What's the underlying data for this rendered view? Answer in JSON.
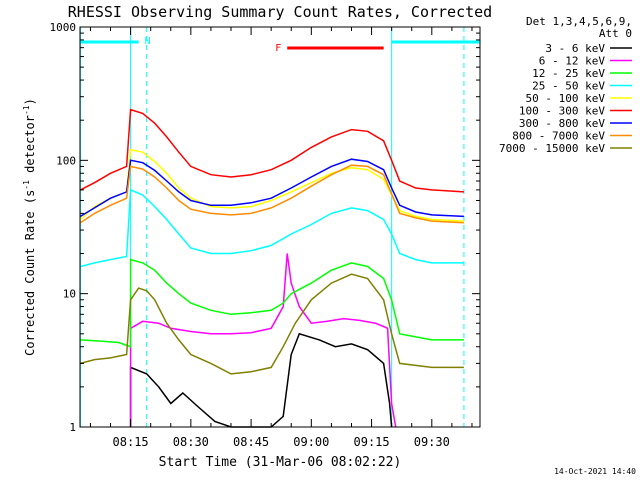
{
  "chart_data": {
    "type": "line",
    "title": "RHESSI Observing Summary Count Rates, Corrected",
    "ylabel_main": "Corrected Count Rate (s",
    "ylabel_sup1": "-1",
    "ylabel_mid": " detector",
    "ylabel_sup2": "-1",
    "ylabel_end": ")",
    "xlabel": "Start Time (31-Mar-06 08:02:22)",
    "timestamp": "14-Oct-2021 14:40",
    "y_scale": "log",
    "ylim": [
      1,
      1000
    ],
    "xlim_minutes_after_0800": [
      2.4,
      102
    ],
    "x_ticks": [
      {
        "label": "08:15",
        "minutes": 15
      },
      {
        "label": "08:30",
        "minutes": 30
      },
      {
        "label": "08:45",
        "minutes": 45
      },
      {
        "label": "09:00",
        "minutes": 60
      },
      {
        "label": "09:15",
        "minutes": 75
      },
      {
        "label": "09:30",
        "minutes": 90
      }
    ],
    "y_ticks": [
      {
        "label": "1",
        "value": 1
      },
      {
        "label": "10",
        "value": 10
      },
      {
        "label": "100",
        "value": 100
      },
      {
        "label": "1000",
        "value": 1000
      }
    ],
    "legend_header": [
      "Det 1,3,4,5,6,9,",
      "Att 0"
    ],
    "legend_position": "right",
    "markers": {
      "night_label": "N",
      "flare_label": "F",
      "night_bars": [
        [
          2.5,
          17
        ],
        [
          80,
          102
        ]
      ],
      "flare_bar": [
        54,
        78
      ],
      "dashed_lines": [
        19,
        98
      ],
      "solid_lines": [
        2.5,
        15,
        80
      ]
    },
    "series": [
      {
        "name": "3 - 6 keV",
        "color": "#000000",
        "points": [
          [
            15,
            1
          ],
          [
            15,
            2.8
          ],
          [
            19,
            2.5
          ],
          [
            22,
            2.0
          ],
          [
            25,
            1.5
          ],
          [
            28,
            1.8
          ],
          [
            32,
            1.4
          ],
          [
            36,
            1.1
          ],
          [
            40,
            1
          ],
          [
            50,
            1
          ],
          [
            53,
            1.2
          ],
          [
            55,
            3.5
          ],
          [
            57,
            5
          ],
          [
            62,
            4.5
          ],
          [
            66,
            4.0
          ],
          [
            70,
            4.2
          ],
          [
            74,
            3.8
          ],
          [
            78,
            3.0
          ],
          [
            79.5,
            1.5
          ],
          [
            80,
            1
          ]
        ]
      },
      {
        "name": "6 - 12 keV",
        "color": "#ff00ff",
        "points": [
          [
            15,
            1
          ],
          [
            15,
            5.5
          ],
          [
            18,
            6.2
          ],
          [
            22,
            6.0
          ],
          [
            25,
            5.5
          ],
          [
            30,
            5.2
          ],
          [
            35,
            5.0
          ],
          [
            40,
            5.0
          ],
          [
            45,
            5.1
          ],
          [
            50,
            5.5
          ],
          [
            53,
            8
          ],
          [
            54,
            20
          ],
          [
            55,
            12
          ],
          [
            57,
            8
          ],
          [
            60,
            6
          ],
          [
            64,
            6.2
          ],
          [
            68,
            6.5
          ],
          [
            72,
            6.3
          ],
          [
            76,
            6.0
          ],
          [
            79,
            5.5
          ],
          [
            80,
            1.5
          ],
          [
            81,
            1
          ]
        ]
      },
      {
        "name": "12 - 25 keV",
        "color": "#00ff00",
        "points": [
          [
            2.5,
            4.5
          ],
          [
            8,
            4.4
          ],
          [
            12,
            4.3
          ],
          [
            15,
            4.0
          ],
          [
            15,
            18
          ],
          [
            18,
            17
          ],
          [
            21,
            15
          ],
          [
            24,
            12
          ],
          [
            27,
            10
          ],
          [
            30,
            8.5
          ],
          [
            35,
            7.5
          ],
          [
            40,
            7.0
          ],
          [
            45,
            7.2
          ],
          [
            50,
            7.5
          ],
          [
            53,
            8.5
          ],
          [
            55,
            10
          ],
          [
            60,
            12
          ],
          [
            65,
            15
          ],
          [
            70,
            17
          ],
          [
            74,
            16
          ],
          [
            78,
            13
          ],
          [
            80,
            9
          ],
          [
            82,
            5
          ],
          [
            90,
            4.5
          ],
          [
            98,
            4.5
          ]
        ]
      },
      {
        "name": "25 - 50 keV",
        "color": "#00ffff",
        "points": [
          [
            2.5,
            16
          ],
          [
            6,
            17
          ],
          [
            10,
            18
          ],
          [
            14,
            19
          ],
          [
            15,
            60
          ],
          [
            18,
            55
          ],
          [
            21,
            45
          ],
          [
            24,
            36
          ],
          [
            27,
            28
          ],
          [
            30,
            22
          ],
          [
            35,
            20
          ],
          [
            40,
            20
          ],
          [
            45,
            21
          ],
          [
            50,
            23
          ],
          [
            55,
            28
          ],
          [
            60,
            33
          ],
          [
            65,
            40
          ],
          [
            70,
            44
          ],
          [
            74,
            42
          ],
          [
            78,
            36
          ],
          [
            80,
            28
          ],
          [
            82,
            20
          ],
          [
            86,
            18
          ],
          [
            90,
            17
          ],
          [
            98,
            17
          ]
        ]
      },
      {
        "name": "50 - 100 keV",
        "color": "#ffff00",
        "points": [
          [
            2.5,
            36
          ],
          [
            6,
            45
          ],
          [
            10,
            52
          ],
          [
            14,
            58
          ],
          [
            15,
            120
          ],
          [
            18,
            115
          ],
          [
            21,
            98
          ],
          [
            24,
            80
          ],
          [
            27,
            62
          ],
          [
            30,
            52
          ],
          [
            35,
            45
          ],
          [
            40,
            44
          ],
          [
            45,
            45
          ],
          [
            50,
            50
          ],
          [
            55,
            58
          ],
          [
            60,
            68
          ],
          [
            65,
            80
          ],
          [
            70,
            88
          ],
          [
            74,
            85
          ],
          [
            78,
            72
          ],
          [
            80,
            55
          ],
          [
            82,
            42
          ],
          [
            86,
            38
          ],
          [
            90,
            36
          ],
          [
            98,
            35
          ]
        ]
      },
      {
        "name": "100 - 300 keV",
        "color": "#ff0000",
        "points": [
          [
            2.5,
            60
          ],
          [
            6,
            68
          ],
          [
            10,
            80
          ],
          [
            14,
            90
          ],
          [
            15,
            240
          ],
          [
            18,
            225
          ],
          [
            21,
            190
          ],
          [
            24,
            150
          ],
          [
            27,
            115
          ],
          [
            30,
            90
          ],
          [
            35,
            78
          ],
          [
            40,
            75
          ],
          [
            45,
            78
          ],
          [
            50,
            85
          ],
          [
            55,
            100
          ],
          [
            60,
            125
          ],
          [
            65,
            150
          ],
          [
            70,
            170
          ],
          [
            74,
            165
          ],
          [
            78,
            140
          ],
          [
            80,
            100
          ],
          [
            82,
            70
          ],
          [
            86,
            62
          ],
          [
            90,
            60
          ],
          [
            98,
            58
          ]
        ]
      },
      {
        "name": "300 - 800 keV",
        "color": "#0000ff",
        "points": [
          [
            2.5,
            38
          ],
          [
            6,
            44
          ],
          [
            10,
            52
          ],
          [
            14,
            58
          ],
          [
            15,
            100
          ],
          [
            18,
            96
          ],
          [
            21,
            84
          ],
          [
            24,
            70
          ],
          [
            27,
            58
          ],
          [
            30,
            50
          ],
          [
            35,
            46
          ],
          [
            40,
            46
          ],
          [
            45,
            48
          ],
          [
            50,
            52
          ],
          [
            55,
            62
          ],
          [
            60,
            75
          ],
          [
            65,
            90
          ],
          [
            70,
            102
          ],
          [
            74,
            98
          ],
          [
            78,
            85
          ],
          [
            80,
            62
          ],
          [
            82,
            46
          ],
          [
            86,
            41
          ],
          [
            90,
            39
          ],
          [
            98,
            38
          ]
        ]
      },
      {
        "name": "800 - 7000 keV",
        "color": "#ff8c00",
        "points": [
          [
            2.5,
            34
          ],
          [
            6,
            40
          ],
          [
            10,
            46
          ],
          [
            14,
            52
          ],
          [
            15,
            90
          ],
          [
            18,
            86
          ],
          [
            21,
            75
          ],
          [
            24,
            62
          ],
          [
            27,
            50
          ],
          [
            30,
            43
          ],
          [
            35,
            40
          ],
          [
            40,
            39
          ],
          [
            45,
            40
          ],
          [
            50,
            44
          ],
          [
            55,
            52
          ],
          [
            60,
            64
          ],
          [
            65,
            78
          ],
          [
            70,
            92
          ],
          [
            74,
            90
          ],
          [
            78,
            78
          ],
          [
            80,
            56
          ],
          [
            82,
            40
          ],
          [
            86,
            37
          ],
          [
            90,
            35
          ],
          [
            98,
            34
          ]
        ]
      },
      {
        "name": "7000 - 15000 keV",
        "color": "#808000",
        "points": [
          [
            2.5,
            3
          ],
          [
            6,
            3.2
          ],
          [
            10,
            3.3
          ],
          [
            14,
            3.5
          ],
          [
            15,
            9
          ],
          [
            17,
            11
          ],
          [
            19,
            10.5
          ],
          [
            21,
            9
          ],
          [
            24,
            6
          ],
          [
            27,
            4.5
          ],
          [
            30,
            3.5
          ],
          [
            35,
            3
          ],
          [
            40,
            2.5
          ],
          [
            45,
            2.6
          ],
          [
            50,
            2.8
          ],
          [
            53,
            4
          ],
          [
            56,
            6
          ],
          [
            60,
            9
          ],
          [
            65,
            12
          ],
          [
            70,
            14
          ],
          [
            74,
            13
          ],
          [
            78,
            9
          ],
          [
            80,
            5
          ],
          [
            82,
            3
          ],
          [
            90,
            2.8
          ],
          [
            98,
            2.8
          ]
        ]
      }
    ]
  }
}
